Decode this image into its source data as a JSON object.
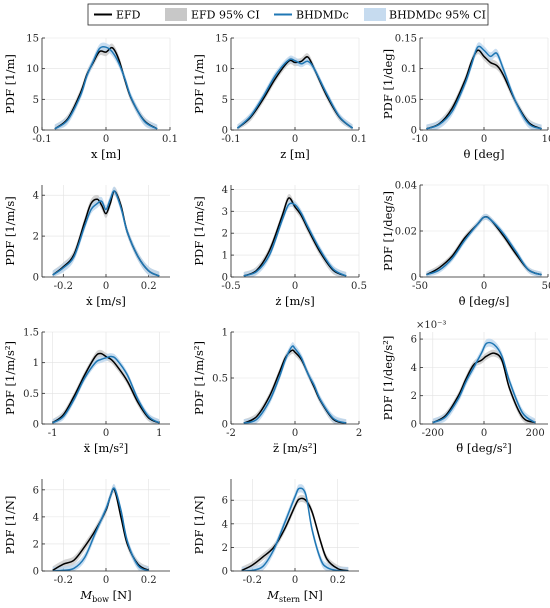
{
  "legend": {
    "entries": [
      {
        "name": "EFD",
        "kind": "line",
        "color": "#000000"
      },
      {
        "name": "EFD 95% CI",
        "kind": "band",
        "color": "#c8c8c8"
      },
      {
        "name": "BHDMDc",
        "kind": "line",
        "color": "#1f77b4"
      },
      {
        "name": "BHDMDc 95% CI",
        "kind": "band",
        "color": "#c6dbef"
      }
    ]
  },
  "colors": {
    "efd": "#000000",
    "efd_ci": "#c8c8c8",
    "bhd": "#1f77b4",
    "bhd_ci": "#bcd6ee"
  },
  "chart_data": [
    {
      "type": "line",
      "xlabel": "x [m]",
      "ylabel": "PDF [1/m]",
      "xlim": [
        -0.1,
        0.1
      ],
      "ylim": [
        0,
        15
      ],
      "xticks": [
        "-0.1",
        "0",
        "0.1"
      ],
      "yticks": [
        "0",
        "5",
        "10",
        "15"
      ],
      "x": [
        -0.08,
        -0.06,
        -0.04,
        -0.03,
        -0.02,
        -0.01,
        0,
        0.01,
        0.02,
        0.03,
        0.04,
        0.06,
        0.08
      ],
      "series": [
        {
          "name": "EFD",
          "values": [
            0.2,
            1.8,
            6.0,
            9.0,
            11.0,
            12.8,
            12.7,
            13.4,
            11.5,
            8.0,
            5.0,
            1.5,
            0.2
          ]
        },
        {
          "name": "BHDMDc",
          "values": [
            0.2,
            1.6,
            5.6,
            8.8,
            11.2,
            13.3,
            13.5,
            12.7,
            10.9,
            8.2,
            5.1,
            1.4,
            0.2
          ]
        }
      ]
    },
    {
      "type": "line",
      "xlabel": "z [m]",
      "ylabel": "PDF [1/m]",
      "xlim": [
        -0.1,
        0.1
      ],
      "ylim": [
        0,
        15
      ],
      "xticks": [
        "-0.1",
        "0",
        "0.1"
      ],
      "yticks": [
        "0",
        "5",
        "10",
        "15"
      ],
      "x": [
        -0.09,
        -0.07,
        -0.05,
        -0.03,
        -0.01,
        0,
        0.01,
        0.02,
        0.03,
        0.05,
        0.07,
        0.09
      ],
      "series": [
        {
          "name": "EFD",
          "values": [
            0.3,
            2.0,
            5.0,
            8.5,
            11.2,
            11.0,
            11.2,
            11.9,
            10.0,
            5.5,
            2.0,
            0.3
          ]
        },
        {
          "name": "BHDMDc",
          "values": [
            0.3,
            2.2,
            5.4,
            9.0,
            11.4,
            11.3,
            10.8,
            11.2,
            10.0,
            5.8,
            2.1,
            0.3
          ]
        }
      ]
    },
    {
      "type": "line",
      "xlabel": "θ [deg]",
      "ylabel": "PDF [1/deg]",
      "xlim": [
        -10,
        10
      ],
      "ylim": [
        0,
        0.15
      ],
      "xticks": [
        "-10",
        "0",
        "10"
      ],
      "yticks": [
        "0",
        "0.05",
        "0.1",
        "0.15"
      ],
      "x": [
        -9,
        -7,
        -5,
        -3,
        -2,
        -1,
        0,
        1,
        2,
        3,
        5,
        7,
        9
      ],
      "series": [
        {
          "name": "EFD",
          "values": [
            0.002,
            0.01,
            0.035,
            0.08,
            0.11,
            0.13,
            0.12,
            0.11,
            0.105,
            0.09,
            0.045,
            0.012,
            0.002
          ]
        },
        {
          "name": "BHDMDc",
          "values": [
            0.002,
            0.009,
            0.03,
            0.075,
            0.105,
            0.135,
            0.13,
            0.12,
            0.125,
            0.1,
            0.045,
            0.01,
            0.002
          ]
        }
      ]
    },
    {
      "type": "line",
      "xlabel": "ẋ [m/s]",
      "ylabel": "PDF [1/m/s]",
      "xlim": [
        -0.3,
        0.3
      ],
      "ylim": [
        0,
        4.5
      ],
      "xticks": [
        "-0.2",
        "0",
        "0.2"
      ],
      "yticks": [
        "0",
        "2",
        "4"
      ],
      "x": [
        -0.25,
        -0.2,
        -0.15,
        -0.1,
        -0.07,
        -0.04,
        -0.02,
        0,
        0.02,
        0.04,
        0.07,
        0.1,
        0.15,
        0.2,
        0.25
      ],
      "series": [
        {
          "name": "EFD",
          "values": [
            0.1,
            0.5,
            1.1,
            2.7,
            3.6,
            3.8,
            3.5,
            3.1,
            3.6,
            4.2,
            3.5,
            2.2,
            1.0,
            0.3,
            0.05
          ]
        },
        {
          "name": "BHDMDc",
          "values": [
            0.1,
            0.45,
            1.0,
            2.5,
            3.3,
            3.6,
            3.7,
            3.3,
            3.8,
            4.2,
            3.4,
            2.2,
            1.0,
            0.3,
            0.05
          ]
        }
      ]
    },
    {
      "type": "line",
      "xlabel": "ż [m/s]",
      "ylabel": "PDF [1/m/s]",
      "xlim": [
        -0.5,
        0.5
      ],
      "ylim": [
        0,
        4.2
      ],
      "xticks": [
        "-0.5",
        "0",
        "0.5"
      ],
      "yticks": [
        "0",
        "1",
        "2",
        "3",
        "4"
      ],
      "x": [
        -0.4,
        -0.3,
        -0.2,
        -0.1,
        -0.05,
        0,
        0.05,
        0.1,
        0.2,
        0.3,
        0.4
      ],
      "series": [
        {
          "name": "EFD",
          "values": [
            0.05,
            0.3,
            1.2,
            2.8,
            3.6,
            3.2,
            2.8,
            2.2,
            1.1,
            0.3,
            0.05
          ]
        },
        {
          "name": "BHDMDc",
          "values": [
            0.05,
            0.25,
            1.0,
            2.6,
            3.3,
            3.3,
            2.9,
            2.3,
            1.2,
            0.35,
            0.05
          ]
        }
      ]
    },
    {
      "type": "line",
      "xlabel": "θ̇ [deg/s]",
      "ylabel": "PDF [1/deg/s]",
      "xlim": [
        -50,
        50
      ],
      "ylim": [
        0,
        0.04
      ],
      "xticks": [
        "-50",
        "0",
        "50"
      ],
      "yticks": [
        "0",
        "0.02",
        "0.04"
      ],
      "x": [
        -45,
        -35,
        -25,
        -15,
        -5,
        0,
        5,
        15,
        25,
        35,
        45
      ],
      "series": [
        {
          "name": "EFD",
          "values": [
            0.001,
            0.004,
            0.009,
            0.017,
            0.023,
            0.026,
            0.025,
            0.018,
            0.01,
            0.003,
            0.001
          ]
        },
        {
          "name": "BHDMDc",
          "values": [
            0.001,
            0.003,
            0.008,
            0.016,
            0.023,
            0.026,
            0.025,
            0.019,
            0.011,
            0.003,
            0.001
          ]
        }
      ]
    },
    {
      "type": "line",
      "xlabel": "ẍ [m/s²]",
      "ylabel": "PDF [1/m/s²]",
      "xlim": [
        -1.2,
        1.2
      ],
      "ylim": [
        0,
        1.5
      ],
      "xticks": [
        "-1",
        "0",
        "1"
      ],
      "yticks": [
        "0",
        "0.5",
        "1",
        "1.5"
      ],
      "x": [
        -1.0,
        -0.8,
        -0.6,
        -0.4,
        -0.2,
        -0.1,
        0,
        0.1,
        0.2,
        0.4,
        0.6,
        0.8,
        1.0
      ],
      "series": [
        {
          "name": "EFD",
          "values": [
            0.02,
            0.15,
            0.45,
            0.8,
            1.1,
            1.15,
            1.1,
            1.05,
            0.95,
            0.7,
            0.35,
            0.1,
            0.02
          ]
        },
        {
          "name": "BHDMDc",
          "values": [
            0.02,
            0.12,
            0.4,
            0.75,
            1.0,
            1.05,
            1.08,
            1.1,
            1.05,
            0.8,
            0.4,
            0.12,
            0.02
          ]
        }
      ]
    },
    {
      "type": "line",
      "xlabel": "z̈ [m/s²]",
      "ylabel": "PDF [1/m/s²]",
      "xlim": [
        -2,
        2
      ],
      "ylim": [
        0,
        1
      ],
      "xticks": [
        "-2",
        "0",
        "2"
      ],
      "yticks": [
        "0",
        "0.5",
        "1"
      ],
      "x": [
        -1.6,
        -1.2,
        -0.8,
        -0.5,
        -0.3,
        -0.1,
        0,
        0.2,
        0.4,
        0.6,
        0.8,
        1.2,
        1.6
      ],
      "series": [
        {
          "name": "EFD",
          "values": [
            0.01,
            0.08,
            0.3,
            0.55,
            0.72,
            0.8,
            0.78,
            0.7,
            0.55,
            0.4,
            0.25,
            0.05,
            0.01
          ]
        },
        {
          "name": "BHDMDc",
          "values": [
            0.01,
            0.05,
            0.25,
            0.5,
            0.7,
            0.84,
            0.82,
            0.72,
            0.55,
            0.42,
            0.26,
            0.06,
            0.01
          ]
        }
      ]
    },
    {
      "type": "line",
      "xlabel": "θ̈ [deg/s²]",
      "ylabel": "PDF [1/deg/s²]",
      "xlim": [
        -250,
        250
      ],
      "ylim": [
        0,
        0.0065
      ],
      "yscale_label": "×10⁻³",
      "xticks": [
        "-200",
        "0",
        "200"
      ],
      "yticks": [
        "0",
        "2",
        "4",
        "6"
      ],
      "x": [
        -200,
        -150,
        -100,
        -70,
        -40,
        -10,
        10,
        40,
        70,
        100,
        150,
        200
      ],
      "series": [
        {
          "name": "EFD",
          "values": [
            0.0001,
            0.0006,
            0.002,
            0.0032,
            0.0042,
            0.0045,
            0.0048,
            0.005,
            0.0045,
            0.0025,
            0.0005,
            0.0001
          ]
        },
        {
          "name": "BHDMDc",
          "values": [
            0.0001,
            0.0005,
            0.0018,
            0.003,
            0.004,
            0.005,
            0.0057,
            0.0056,
            0.0048,
            0.003,
            0.0008,
            0.0001
          ]
        }
      ]
    },
    {
      "type": "line",
      "xlabel": "M_bow [N]",
      "ylabel": "PDF [1/N]",
      "xlim": [
        -0.3,
        0.3
      ],
      "ylim": [
        0,
        6.8
      ],
      "xticks": [
        "-0.2",
        "0",
        "0.2"
      ],
      "yticks": [
        "0",
        "2",
        "4",
        "6"
      ],
      "x": [
        -0.25,
        -0.2,
        -0.15,
        -0.1,
        -0.05,
        0,
        0.02,
        0.04,
        0.07,
        0.1,
        0.15,
        0.2
      ],
      "series": [
        {
          "name": "EFD",
          "values": [
            0.05,
            0.5,
            0.8,
            1.8,
            3.0,
            4.5,
            5.5,
            6.0,
            4.0,
            2.0,
            0.5,
            0.05
          ]
        },
        {
          "name": "BHDMDc",
          "values": [
            0.0,
            0.05,
            0.2,
            1.0,
            2.8,
            4.6,
            5.5,
            6.1,
            4.5,
            2.2,
            0.4,
            0.02
          ]
        }
      ]
    },
    {
      "type": "line",
      "xlabel": "M_stern [N]",
      "ylabel": "PDF [1/N]",
      "xlim": [
        -0.3,
        0.3
      ],
      "ylim": [
        0,
        7.8
      ],
      "xticks": [
        "-0.2",
        "0",
        "0.2"
      ],
      "yticks": [
        "0",
        "2",
        "4",
        "6"
      ],
      "x": [
        -0.25,
        -0.2,
        -0.15,
        -0.1,
        -0.05,
        0,
        0.02,
        0.05,
        0.08,
        0.12,
        0.15,
        0.2,
        0.25
      ],
      "series": [
        {
          "name": "EFD",
          "values": [
            0.05,
            0.5,
            1.2,
            2.0,
            3.5,
            5.5,
            6.1,
            6.0,
            5.0,
            2.5,
            1.0,
            0.2,
            0.02
          ]
        },
        {
          "name": "BHDMDc",
          "values": [
            0.0,
            0.05,
            0.4,
            1.8,
            4.0,
            6.3,
            7.0,
            6.5,
            3.5,
            1.0,
            0.3,
            0.03,
            0.0
          ]
        }
      ]
    }
  ]
}
